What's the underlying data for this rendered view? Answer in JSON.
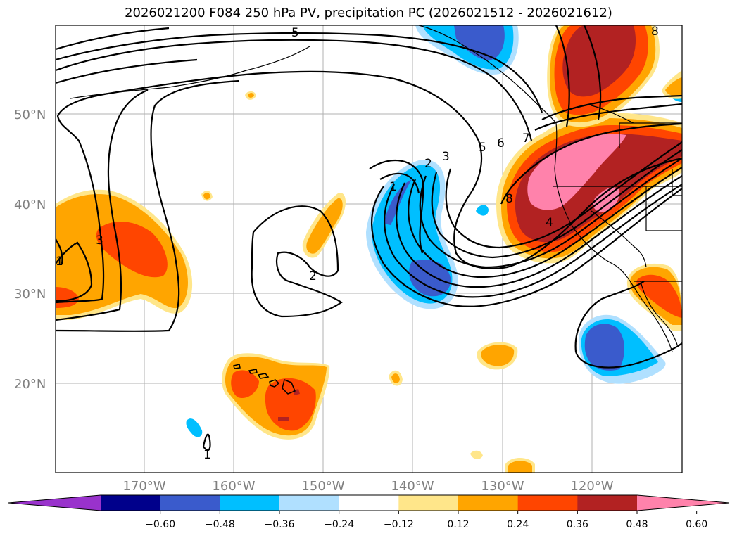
{
  "title": "2026021200 F084 250 hPa PV, precipitation PC (2026021512 - 2026021612)",
  "lat_ticks": [
    "50°N",
    "40°N",
    "30°N",
    "20°N"
  ],
  "lon_ticks": [
    "170°W",
    "160°W",
    "150°W",
    "140°W",
    "130°W",
    "120°W"
  ],
  "colorbar": {
    "labels": [
      "−0.60",
      "−0.48",
      "−0.36",
      "−0.24",
      "−0.12",
      "0.12",
      "0.24",
      "0.36",
      "0.48",
      "0.60"
    ],
    "colors": [
      "#9932cc",
      "#00008b",
      "#3a5bcc",
      "#00bfff",
      "#b0e0ff",
      "#ffffff",
      "#ffe68a",
      "#ffa500",
      "#ff4500",
      "#b22222",
      "#ff82ab"
    ]
  },
  "contour_labels": [
    "1",
    "2",
    "3",
    "5",
    "6",
    "7",
    "8",
    "4",
    "3",
    "2",
    "1",
    "1",
    "5",
    "8"
  ]
}
